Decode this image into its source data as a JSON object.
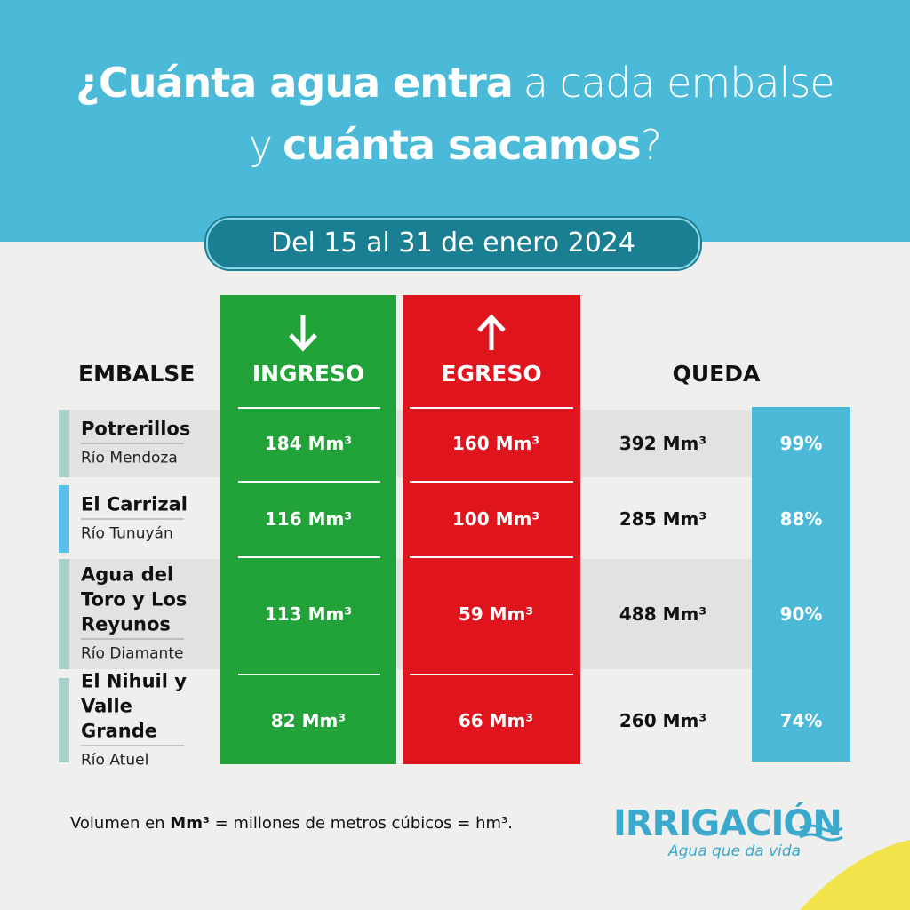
{
  "header": {
    "title_line1": [
      {
        "text": "¿Cuánta agua entra",
        "bold": true
      },
      {
        "text": "a cada embalse",
        "bold": false
      }
    ],
    "title_line2": [
      {
        "text": "y",
        "bold": false
      },
      {
        "text": "cuánta sacamos",
        "bold": true
      },
      {
        "text": "?",
        "bold": false
      }
    ],
    "date": "Del 15 al 31 de enero 2024"
  },
  "table": {
    "headers": [
      "EMBALSE",
      "INGRESO",
      "EGRESO",
      "QUEDA"
    ],
    "rows": [
      {
        "name": "Potrerillos",
        "river": "Río Mendoza",
        "ingreso": "184 Mm³",
        "egreso": "160 Mm³",
        "queda": "392 Mm³",
        "percent": "99%"
      },
      {
        "name": "El Carrizal",
        "river": "Río Tunuyán",
        "ingreso": "116 Mm³",
        "egreso": "100 Mm³",
        "queda": "285 Mm³",
        "percent": "88%"
      },
      {
        "name": "Agua del Toro y Los Reyunos",
        "river": "Río Diamante",
        "ingreso": "113 Mm³",
        "egreso": "59 Mm³",
        "queda": "488 Mm³",
        "percent": "90%"
      },
      {
        "name": "El Nihuil y Valle Grande",
        "river": "Río Atuel",
        "ingreso": "82 Mm³",
        "egreso": "66 Mm³",
        "queda": "260 Mm³",
        "percent": "74%"
      }
    ]
  },
  "footer": {
    "note": [
      "Volumen en",
      "Mm³",
      "= millones de metros cúbicos = hm³."
    ],
    "logo": "IRRIGACIÓN",
    "tagline": "Agua que da vida"
  }
}
